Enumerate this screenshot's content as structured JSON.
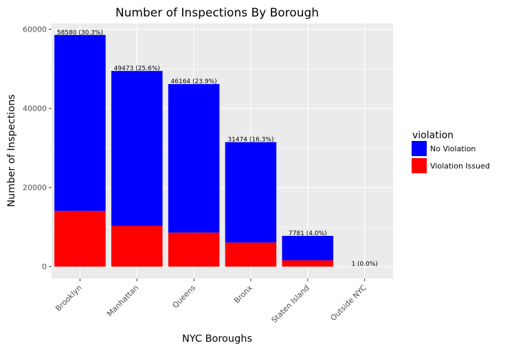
{
  "chart_data": {
    "type": "bar",
    "stacked": true,
    "title": "Number of Inspections By Borough",
    "xlabel": "NYC Boroughs",
    "ylabel": "Number of Inspections",
    "categories": [
      "Brooklyn",
      "Manhattan",
      "Queens",
      "Bronx",
      "Staten Island",
      "Outside NYC"
    ],
    "series": [
      {
        "name": "Violation Issued",
        "color": "#ff0000",
        "values": [
          14100,
          10300,
          8600,
          6100,
          1600,
          0
        ]
      },
      {
        "name": "No Violation",
        "color": "#0000ff",
        "values": [
          44480,
          39173,
          37564,
          25374,
          6181,
          1
        ]
      }
    ],
    "totals": [
      58580,
      49473,
      46164,
      31474,
      7781,
      1
    ],
    "bar_labels": [
      "58580 (30.3%)",
      "49473 (25.6%)",
      "46164 (23.9%)",
      "31474 (16.3%)",
      "7781 (4.0%)",
      "1 (0.0%)"
    ],
    "y_ticks": [
      0,
      20000,
      40000,
      60000
    ],
    "ylim": [
      -3000,
      61500
    ],
    "grid": true,
    "legend": {
      "title": "violation",
      "position": "right",
      "entries": [
        {
          "label": "No Violation",
          "color": "#0000ff"
        },
        {
          "label": "Violation Issued",
          "color": "#ff0000"
        }
      ]
    }
  }
}
